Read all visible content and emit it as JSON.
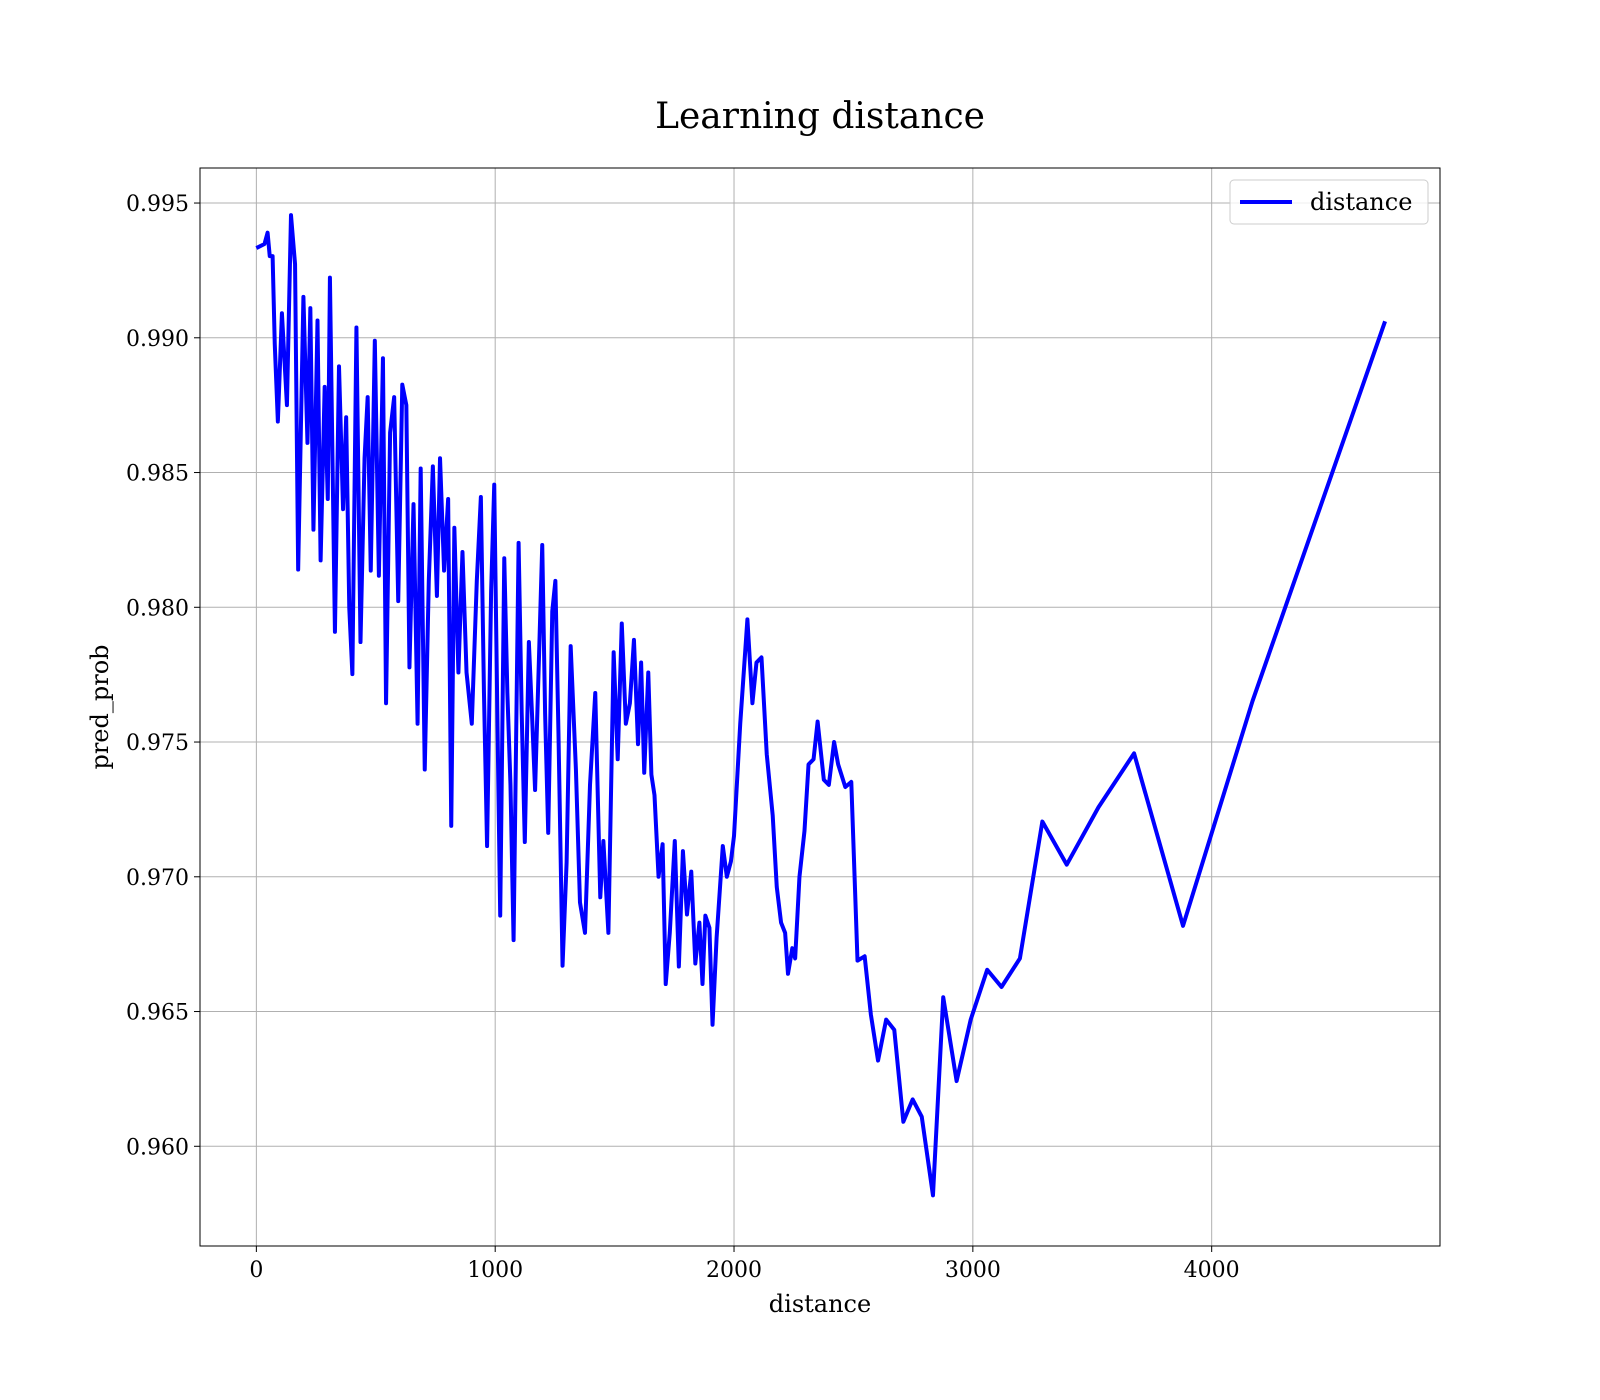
{
  "chart_data": {
    "type": "line",
    "title": "Learning distance",
    "x_label": "distance",
    "y_label": "pred_prob",
    "xlim": [
      -236,
      4956
    ],
    "ylim": [
      0.9563,
      0.9963
    ],
    "xticks": [
      0,
      1000,
      2000,
      3000,
      4000
    ],
    "yticks": [
      {
        "value": 0.96,
        "label": "0.960"
      },
      0.965,
      {
        "value": 0.97,
        "label": "0.970"
      },
      0.975,
      {
        "value": 0.98,
        "label": "0.980"
      },
      0.985,
      {
        "value": 0.99,
        "label": "0.990"
      },
      0.995
    ],
    "grid": true,
    "legend": "upper right",
    "series": [
      {
        "name": "distance",
        "color": "#0000ff",
        "x": [
          0,
          34,
          47,
          56,
          68,
          77,
          90,
          107,
          128,
          145,
          162,
          175,
          197,
          214,
          226,
          239,
          256,
          269,
          286,
          299,
          308,
          329,
          346,
          363,
          376,
          389,
          402,
          419,
          436,
          453,
          466,
          479,
          496,
          513,
          530,
          543,
          560,
          577,
          594,
          611,
          628,
          641,
          658,
          675,
          688,
          705,
          722,
          739,
          756,
          769,
          786,
          803,
          816,
          829,
          846,
          863,
          880,
          902,
          923,
          940,
          953,
          966,
          983,
          996,
          1009,
          1021,
          1038,
          1051,
          1064,
          1077,
          1098,
          1111,
          1124,
          1141,
          1154,
          1167,
          1184,
          1197,
          1209,
          1222,
          1239,
          1252,
          1265,
          1282,
          1299,
          1316,
          1338,
          1355,
          1376,
          1397,
          1419,
          1440,
          1453,
          1474,
          1496,
          1513,
          1530,
          1547,
          1564,
          1581,
          1598,
          1611,
          1624,
          1641,
          1654,
          1667,
          1684,
          1701,
          1714,
          1731,
          1752,
          1769,
          1786,
          1803,
          1821,
          1838,
          1855,
          1868,
          1880,
          1897,
          1910,
          1927,
          1953,
          1970,
          1987,
          2000,
          2026,
          2056,
          2077,
          2094,
          2115,
          2137,
          2162,
          2179,
          2197,
          2214,
          2226,
          2244,
          2256,
          2274,
          2295,
          2312,
          2333,
          2350,
          2376,
          2397,
          2419,
          2436,
          2466,
          2491,
          2517,
          2547,
          2573,
          2603,
          2637,
          2671,
          2709,
          2748,
          2786,
          2833,
          2876,
          2932,
          2991,
          3060,
          3120,
          3197,
          3291,
          3393,
          3526,
          3675,
          3880,
          4171,
          4726
        ],
        "values": [
          0.99333,
          0.99348,
          0.9939,
          0.99303,
          0.99303,
          0.98977,
          0.98689,
          0.99091,
          0.9875,
          0.99455,
          0.99273,
          0.9814,
          0.99152,
          0.9861,
          0.9911,
          0.98288,
          0.99064,
          0.98174,
          0.98818,
          0.98402,
          0.99223,
          0.97909,
          0.98894,
          0.98364,
          0.98705,
          0.97998,
          0.97752,
          0.99038,
          0.97871,
          0.98553,
          0.9878,
          0.98136,
          0.98989,
          0.98117,
          0.98924,
          0.97644,
          0.98648,
          0.9878,
          0.98023,
          0.98826,
          0.9875,
          0.97777,
          0.98383,
          0.97568,
          0.98515,
          0.97398,
          0.98098,
          0.98523,
          0.98042,
          0.98553,
          0.98136,
          0.98402,
          0.97189,
          0.98295,
          0.97758,
          0.98205,
          0.97758,
          0.97568,
          0.98098,
          0.98409,
          0.97682,
          0.97114,
          0.98061,
          0.98455,
          0.97606,
          0.96856,
          0.98182,
          0.97682,
          0.97341,
          0.96765,
          0.98239,
          0.97606,
          0.97129,
          0.97871,
          0.97606,
          0.97322,
          0.97833,
          0.98231,
          0.97606,
          0.97163,
          0.97985,
          0.98098,
          0.9753,
          0.9667,
          0.97053,
          0.97856,
          0.97398,
          0.96905,
          0.96792,
          0.97341,
          0.97682,
          0.96924,
          0.97133,
          0.96792,
          0.97833,
          0.97436,
          0.9794,
          0.97568,
          0.97644,
          0.97879,
          0.97492,
          0.97795,
          0.97386,
          0.97758,
          0.97379,
          0.97303,
          0.97,
          0.97121,
          0.96602,
          0.96792,
          0.97133,
          0.96667,
          0.97095,
          0.9686,
          0.97019,
          0.96678,
          0.9683,
          0.96602,
          0.96856,
          0.96811,
          0.96451,
          0.96773,
          0.97114,
          0.97,
          0.97057,
          0.97152,
          0.97568,
          0.97955,
          0.97644,
          0.97795,
          0.97814,
          0.97455,
          0.97227,
          0.96962,
          0.9683,
          0.96792,
          0.9664,
          0.96735,
          0.96697,
          0.97,
          0.9717,
          0.97417,
          0.97436,
          0.97576,
          0.9736,
          0.97341,
          0.975,
          0.97417,
          0.97333,
          0.97352,
          0.96689,
          0.96705,
          0.96489,
          0.96318,
          0.9647,
          0.96432,
          0.96091,
          0.96174,
          0.9611,
          0.95818,
          0.96553,
          0.96242,
          0.9647,
          0.96655,
          0.96591,
          0.96697,
          0.97205,
          0.97045,
          0.97258,
          0.97458,
          0.96818,
          0.97652,
          0.99061
        ]
      }
    ]
  }
}
